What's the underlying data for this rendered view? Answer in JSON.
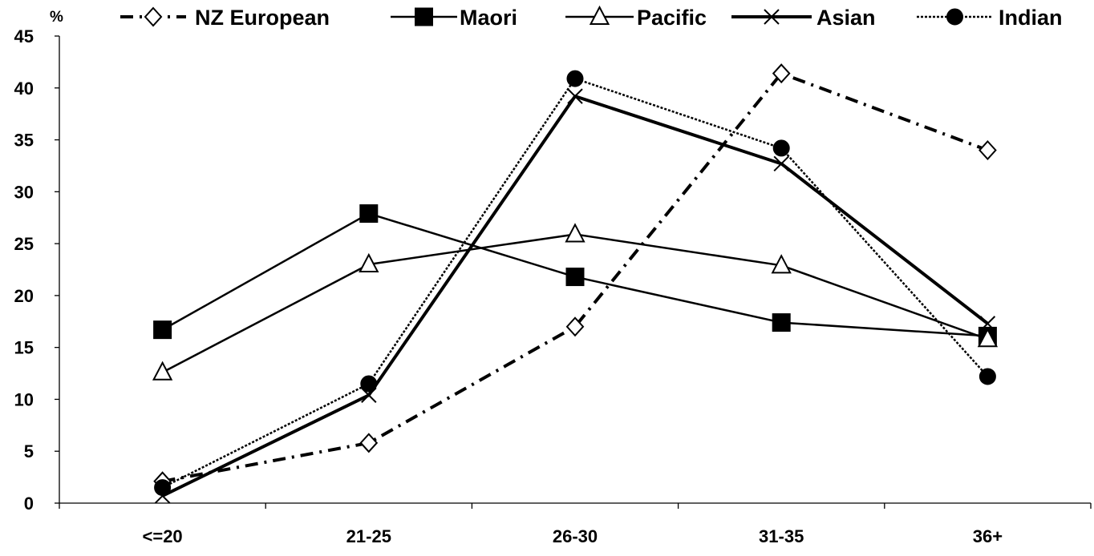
{
  "chart_data": {
    "type": "line",
    "title": "",
    "xlabel": "",
    "ylabel": "%",
    "categories": [
      "<=20",
      "21-25",
      "26-30",
      "31-35",
      "36+"
    ],
    "ylim": [
      0,
      45
    ],
    "yticks": [
      0,
      5,
      10,
      15,
      20,
      25,
      30,
      35,
      40,
      45
    ],
    "grid": false,
    "legend_position": "top",
    "series": [
      {
        "name": "NZ European",
        "values": [
          2.1,
          5.8,
          17.0,
          41.4,
          34.0
        ],
        "marker": "diamond-open",
        "line_style": "dash-dot",
        "color": "#000000"
      },
      {
        "name": "Maori",
        "values": [
          16.7,
          27.9,
          21.8,
          17.4,
          16.1
        ],
        "marker": "square-filled",
        "line_style": "solid",
        "color": "#000000"
      },
      {
        "name": "Pacific",
        "values": [
          12.6,
          23.0,
          25.9,
          22.9,
          15.8
        ],
        "marker": "triangle-open",
        "line_style": "solid",
        "color": "#000000"
      },
      {
        "name": "Asian",
        "values": [
          0.7,
          10.4,
          39.2,
          32.7,
          17.3
        ],
        "marker": "x",
        "line_style": "solid-thick",
        "color": "#000000"
      },
      {
        "name": "Indian",
        "values": [
          1.5,
          11.5,
          40.9,
          34.2,
          12.2
        ],
        "marker": "circle-filled",
        "line_style": "dotted",
        "color": "#000000"
      }
    ]
  }
}
